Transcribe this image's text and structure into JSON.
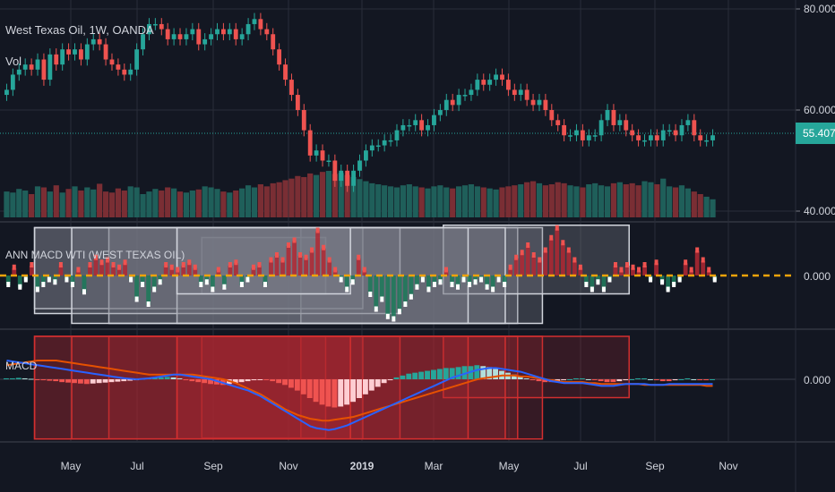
{
  "header": {
    "symbol": "West Texas Oil, 1W, OANDA",
    "vol_label": "Vol"
  },
  "indicators": {
    "ann_label": "ANN MACD WTI (WEST TEXAS OIL)",
    "macd_label": "MACD"
  },
  "colors": {
    "background": "#131722",
    "grid": "#2a2e39",
    "up": "#26a69a",
    "down": "#ef5350",
    "current_price": "#26a69a",
    "zero_line": "#f0a30a",
    "macd_line": "#2962ff",
    "signal_line": "#e65100"
  },
  "chart_data": [
    {
      "type": "candlestick",
      "name": "price",
      "ylim": [
        40,
        80
      ],
      "y_ticks": [
        {
          "value": 80,
          "label": "80.000"
        },
        {
          "value": 60,
          "label": "60.000"
        },
        {
          "value": 40,
          "label": "40.000"
        }
      ],
      "current_price": {
        "value": 55.4,
        "label": "55.407"
      },
      "x_ticks": [
        "May",
        "Jul",
        "Sep",
        "Nov",
        "2019",
        "Mar",
        "May",
        "Jul",
        "Sep",
        "Nov"
      ],
      "closes": [
        64,
        67,
        68,
        69,
        68,
        70,
        66,
        71,
        69,
        72,
        71,
        72,
        70,
        73,
        74,
        73,
        70,
        69,
        68,
        67,
        68,
        72,
        75,
        77,
        77,
        76,
        74,
        75,
        74,
        75,
        76,
        73,
        74,
        75,
        76,
        75,
        76,
        74,
        75,
        77,
        78,
        76,
        75,
        72,
        69,
        66,
        63,
        60,
        56,
        51,
        52,
        50,
        50,
        46,
        48,
        45,
        48,
        50,
        52,
        53,
        53,
        54,
        54,
        56,
        57,
        57,
        58,
        56,
        57,
        59,
        60,
        62,
        61,
        63,
        63,
        64,
        66,
        65,
        66,
        67,
        66,
        64,
        63,
        64,
        62,
        61,
        62,
        60,
        58,
        57,
        55,
        55,
        56,
        54,
        55,
        55,
        58,
        60,
        57,
        58,
        56,
        55,
        54,
        54,
        55,
        54,
        56,
        56,
        55,
        57,
        58,
        55,
        54,
        54,
        55
      ]
    },
    {
      "type": "bar",
      "name": "volume",
      "values": [
        50,
        48,
        55,
        52,
        45,
        60,
        58,
        50,
        62,
        48,
        55,
        60,
        52,
        58,
        54,
        65,
        50,
        48,
        56,
        52,
        60,
        58,
        45,
        50,
        55,
        52,
        58,
        56,
        50,
        48,
        52,
        54,
        60,
        58,
        55,
        50,
        48,
        52,
        56,
        62,
        58,
        64,
        60,
        66,
        68,
        72,
        75,
        80,
        78,
        85,
        82,
        88,
        90,
        84,
        86,
        82,
        78,
        74,
        70,
        66,
        64,
        62,
        60,
        58,
        62,
        64,
        60,
        58,
        56,
        60,
        62,
        58,
        56,
        60,
        62,
        64,
        60,
        58,
        56,
        54,
        58,
        60,
        62,
        64,
        68,
        70,
        66,
        62,
        64,
        68,
        66,
        62,
        60,
        58,
        64,
        66,
        62,
        60,
        66,
        68,
        64,
        66,
        62,
        70,
        68,
        64,
        75,
        60,
        58,
        62,
        56,
        50,
        45,
        40,
        35
      ]
    },
    {
      "type": "histogram",
      "name": "ann-macd",
      "ylim": [
        -1,
        1
      ],
      "y_ticks": [
        {
          "value": 0,
          "label": "0.000"
        }
      ],
      "values": [
        -0.2,
        0.15,
        -0.25,
        -0.1,
        0.2,
        -0.3,
        -0.2,
        -0.1,
        -0.15,
        0.2,
        -0.1,
        -0.2,
        0.1,
        -0.35,
        0.2,
        0.35,
        0.25,
        0.3,
        0.2,
        0.15,
        0.25,
        -0.1,
        -0.5,
        -0.2,
        -0.6,
        -0.3,
        -0.15,
        0.2,
        0.15,
        0.1,
        0.2,
        0.25,
        0.15,
        -0.2,
        -0.15,
        -0.3,
        0.1,
        -0.25,
        0.2,
        0.25,
        -0.2,
        -0.1,
        0.15,
        0.2,
        -0.2,
        0.3,
        0.4,
        0.3,
        0.6,
        0.7,
        0.4,
        0.35,
        0.5,
        0.9,
        0.55,
        0.3,
        0.1,
        -0.1,
        -0.3,
        -0.15,
        0.35,
        0.1,
        -0.4,
        -0.7,
        -0.5,
        -0.85,
        -0.9,
        -0.75,
        -0.6,
        -0.45,
        -0.25,
        -0.1,
        -0.3,
        -0.2,
        -0.15,
        0.1,
        -0.2,
        -0.25,
        -0.1,
        -0.2,
        -0.15,
        -0.1,
        -0.25,
        -0.3,
        -0.1,
        -0.2,
        0.15,
        0.35,
        0.45,
        0.6,
        0.4,
        0.3,
        0.5,
        0.75,
        0.95,
        0.65,
        0.5,
        0.3,
        0.15,
        -0.2,
        -0.3,
        -0.15,
        -0.3,
        -0.1,
        0.2,
        0.1,
        0.2,
        0.15,
        0.1,
        0.2,
        -0.1,
        0.25,
        -0.15,
        -0.3,
        -0.2,
        -0.1,
        0.25,
        0.1,
        0.5,
        0.3,
        0.1,
        -0.1
      ],
      "boxes": [
        [
          0.42,
          0.72
        ],
        [
          0.28,
          0.45
        ],
        [
          0.05,
          0.5
        ],
        [
          0.15,
          0.75
        ],
        [
          0.62,
          0.87
        ],
        [
          0.05,
          0.55
        ],
        [
          0.25,
          0.7
        ],
        [
          0.1,
          0.65
        ],
        [
          0.25,
          0.48
        ]
      ]
    },
    {
      "type": "line+histogram",
      "name": "macd",
      "ylim": [
        -6,
        3
      ],
      "y_ticks": [
        {
          "value": 0,
          "label": "0.000"
        }
      ],
      "histogram": [
        0.1,
        0.1,
        0.15,
        0.1,
        0.05,
        -0.05,
        -0.1,
        -0.15,
        -0.2,
        -0.3,
        -0.35,
        -0.4,
        -0.45,
        -0.5,
        -0.45,
        -0.4,
        -0.35,
        -0.3,
        -0.25,
        -0.2,
        -0.15,
        -0.1,
        0.05,
        0.1,
        0.15,
        0.2,
        0.25,
        0.2,
        0.1,
        -0.1,
        -0.2,
        -0.3,
        -0.4,
        -0.5,
        -0.55,
        -0.6,
        -0.5,
        -0.4,
        -0.3,
        -0.2,
        -0.1,
        -0.05,
        -0.1,
        -0.2,
        -0.4,
        -0.6,
        -0.9,
        -1.2,
        -1.6,
        -2,
        -2.4,
        -2.7,
        -2.9,
        -3,
        -2.9,
        -2.7,
        -2.4,
        -2,
        -1.6,
        -1.2,
        -0.8,
        -0.4,
        -0.1,
        0.2,
        0.4,
        0.6,
        0.7,
        0.8,
        0.9,
        1,
        1.1,
        1.2,
        1.2,
        1.3,
        1.4,
        1.4,
        1.5,
        1.4,
        1.3,
        1.1,
        0.9,
        0.7,
        0.5,
        0.3,
        0.1,
        -0.1,
        -0.2,
        -0.3,
        -0.3,
        -0.2,
        -0.1,
        0,
        0.1,
        0.1,
        0,
        -0.1,
        -0.2,
        -0.3,
        -0.3,
        -0.2,
        -0.1,
        0,
        0.1,
        0.1,
        0,
        -0.1,
        -0.2,
        -0.2,
        -0.1,
        0,
        0.1,
        0,
        -0.1,
        -0.1,
        0
      ],
      "macd_line": [
        2,
        1.9,
        1.8,
        1.7,
        1.6,
        1.5,
        1.4,
        1.3,
        1.2,
        1.1,
        1,
        0.9,
        0.8,
        0.7,
        0.6,
        0.5,
        0.4,
        0.3,
        0.2,
        0.1,
        0.05,
        0,
        0.05,
        0.1,
        0.2,
        0.3,
        0.4,
        0.5,
        0.5,
        0.4,
        0.3,
        0.2,
        0.1,
        0,
        -0.2,
        -0.4,
        -0.6,
        -0.8,
        -1,
        -1.2,
        -1.5,
        -1.8,
        -2.2,
        -2.6,
        -3,
        -3.4,
        -3.8,
        -4.2,
        -4.6,
        -5,
        -5.2,
        -5.3,
        -5.4,
        -5.3,
        -5.1,
        -4.9,
        -4.6,
        -4.3,
        -4,
        -3.7,
        -3.4,
        -3.1,
        -2.8,
        -2.5,
        -2.2,
        -1.9,
        -1.6,
        -1.3,
        -1,
        -0.7,
        -0.4,
        -0.1,
        0.2,
        0.4,
        0.6,
        0.8,
        1,
        1.1,
        1.2,
        1.2,
        1.1,
        1,
        0.9,
        0.8,
        0.6,
        0.4,
        0.2,
        0,
        -0.2,
        -0.3,
        -0.4,
        -0.4,
        -0.4,
        -0.4,
        -0.5,
        -0.6,
        -0.7,
        -0.7,
        -0.7,
        -0.6,
        -0.5,
        -0.5,
        -0.5,
        -0.5,
        -0.6,
        -0.6,
        -0.6,
        -0.5,
        -0.5,
        -0.5,
        -0.5,
        -0.5,
        -0.5,
        -0.5,
        -0.5
      ],
      "signal_line": [
        1.5,
        1.6,
        1.7,
        1.8,
        1.9,
        2,
        2,
        2,
        2,
        1.9,
        1.8,
        1.7,
        1.6,
        1.5,
        1.4,
        1.3,
        1.2,
        1.1,
        1,
        0.9,
        0.8,
        0.7,
        0.6,
        0.5,
        0.5,
        0.5,
        0.5,
        0.5,
        0.5,
        0.5,
        0.5,
        0.4,
        0.3,
        0.2,
        0.1,
        0,
        -0.2,
        -0.4,
        -0.7,
        -1,
        -1.3,
        -1.6,
        -2,
        -2.4,
        -2.8,
        -3.2,
        -3.5,
        -3.8,
        -4,
        -4.2,
        -4.3,
        -4.4,
        -4.4,
        -4.3,
        -4.2,
        -4.1,
        -4,
        -3.8,
        -3.6,
        -3.4,
        -3.2,
        -3,
        -2.8,
        -2.6,
        -2.4,
        -2.2,
        -2,
        -1.8,
        -1.6,
        -1.4,
        -1.2,
        -1,
        -0.8,
        -0.6,
        -0.4,
        -0.2,
        0,
        0.1,
        0.2,
        0.3,
        0.4,
        0.4,
        0.4,
        0.3,
        0.3,
        0.2,
        0.1,
        0,
        -0.1,
        -0.2,
        -0.3,
        -0.3,
        -0.3,
        -0.3,
        -0.4,
        -0.4,
        -0.5,
        -0.5,
        -0.5,
        -0.5,
        -0.5,
        -0.5,
        -0.5,
        -0.6,
        -0.6,
        -0.6,
        -0.6,
        -0.6,
        -0.6,
        -0.6,
        -0.6,
        -0.6,
        -0.6,
        -0.7,
        -0.7
      ]
    }
  ]
}
